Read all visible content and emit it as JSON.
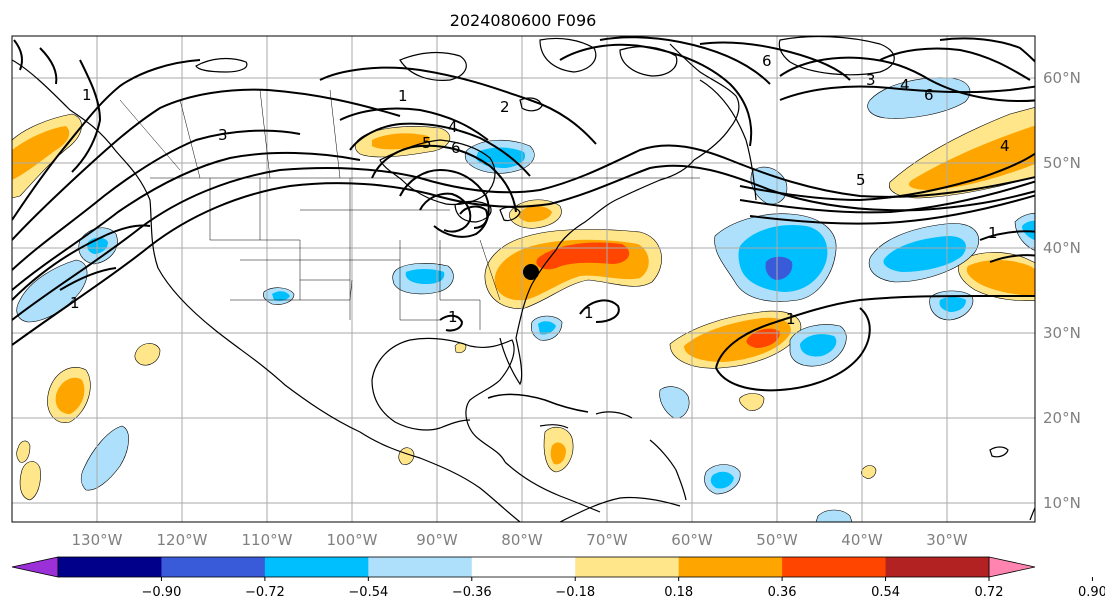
{
  "title": "2024080600 F096",
  "longitude_labels": [
    "130°W",
    "120°W",
    "110°W",
    "100°W",
    "90°W",
    "80°W",
    "70°W",
    "60°W",
    "50°W",
    "40°W",
    "30°W"
  ],
  "latitude_labels": [
    "60°N",
    "50°N",
    "40°N",
    "30°N",
    "20°N",
    "10°N"
  ],
  "colorbar": {
    "tick_labels": [
      "−0.90",
      "−0.72",
      "−0.54",
      "−0.36",
      "−0.18",
      "0.18",
      "0.36",
      "0.54",
      "0.72",
      "0.90"
    ],
    "colors": [
      "#9b30d9",
      "#00008b",
      "#3a5bd9",
      "#00bfff",
      "#aee0fb",
      "#ffffff",
      "#ffe68a",
      "#ffa500",
      "#ff4500",
      "#b22222",
      "#ff85b0"
    ]
  },
  "contour_labels": [
    "1",
    "1",
    "1",
    "2",
    "3",
    "3",
    "4",
    "4",
    "5",
    "5",
    "6",
    "6",
    "6",
    "1",
    "1",
    "1",
    "4",
    "1"
  ],
  "marker": {
    "type": "black-dot"
  }
}
